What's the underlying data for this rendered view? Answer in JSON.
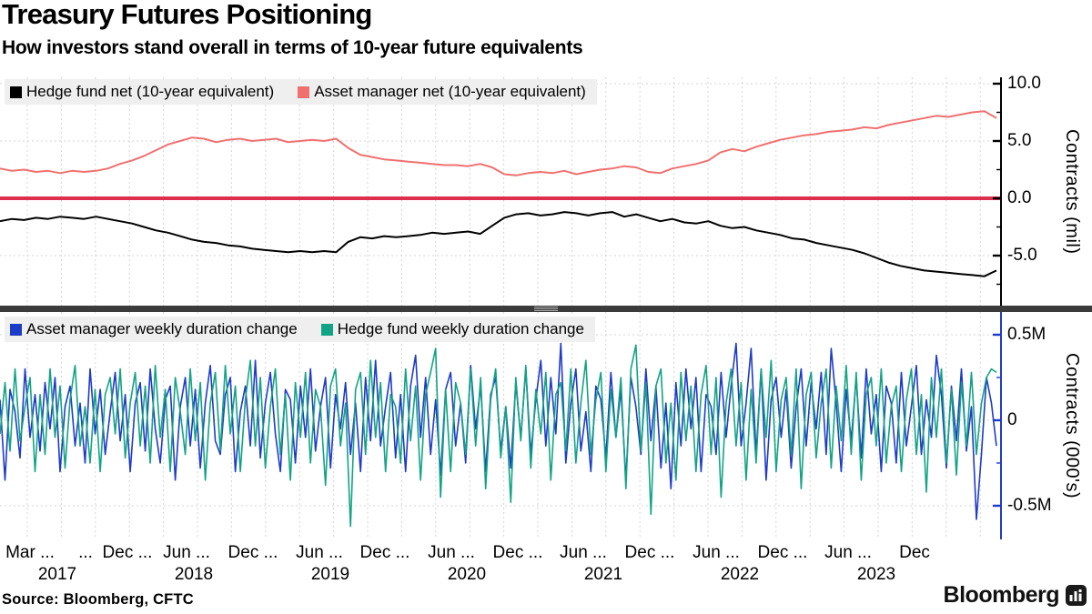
{
  "header": {
    "title": "Treasury Futures Positioning",
    "subtitle": "How investors stand overall in terms of 10-year future equivalents"
  },
  "source": "Source: Bloomberg, CFTC",
  "brand": {
    "wordmark": "Bloomberg",
    "icon": "bloomberg-terminal-icon"
  },
  "colors": {
    "hedge_fund_net": "#000000",
    "asset_manager_net": "#f07070",
    "zero_line_red": "#dd2e4d",
    "asset_manager_duration": "#1e3bc8",
    "hedge_fund_duration": "#12a384",
    "grid": "#d4d4d4",
    "legend_bg": "#efefef",
    "divider": "#3b3b3b"
  },
  "x_axis": {
    "tick_labels": [
      "Mar ...",
      "...",
      "Dec ...",
      "Jun ...",
      "Dec ...",
      "Jun ...",
      "Dec ...",
      "Jun ...",
      "Dec ...",
      "Jun ...",
      "Dec ...",
      "Jun ...",
      "Dec ...",
      "Jun ...",
      "Dec"
    ],
    "year_labels": [
      "2017",
      "2018",
      "2019",
      "2020",
      "2021",
      "2022",
      "2023"
    ]
  },
  "chart_data": [
    {
      "type": "line",
      "panel": "top",
      "ylabel": "Contracts  (mil)",
      "x_range": [
        "Mar 2017",
        "Feb 2024"
      ],
      "ylim": [
        -9.4,
        10.6
      ],
      "grid": "dashed",
      "legend_position": "top-left",
      "y_ticks": [
        {
          "v": 10,
          "label": "10.0"
        },
        {
          "v": 5,
          "label": "5.0"
        },
        {
          "v": 0,
          "label": "0.0"
        },
        {
          "v": -5,
          "label": "-5.0"
        }
      ],
      "y_minor": [
        7.5,
        2.5,
        -2.5,
        -7.5
      ],
      "grid_values": [
        10,
        5,
        -5
      ],
      "zero_line": {
        "value": 0,
        "color": "#dd2e4d",
        "width": 4
      },
      "axis_color": "#000000",
      "series": [
        {
          "name": "Hedge fund net (10-year equivalent)",
          "color": "#000000",
          "values": [
            -2.0,
            -1.8,
            -1.9,
            -1.7,
            -1.8,
            -1.6,
            -1.7,
            -1.8,
            -1.6,
            -1.8,
            -2.0,
            -2.2,
            -2.5,
            -2.8,
            -3.0,
            -3.3,
            -3.6,
            -3.8,
            -3.9,
            -4.1,
            -4.2,
            -4.4,
            -4.5,
            -4.6,
            -4.7,
            -4.6,
            -4.7,
            -4.6,
            -4.7,
            -3.8,
            -3.4,
            -3.5,
            -3.3,
            -3.4,
            -3.3,
            -3.2,
            -3.0,
            -3.1,
            -3.0,
            -2.9,
            -3.1,
            -2.4,
            -1.7,
            -1.4,
            -1.3,
            -1.5,
            -1.4,
            -1.2,
            -1.3,
            -1.5,
            -1.3,
            -1.2,
            -1.6,
            -1.4,
            -1.7,
            -2.0,
            -1.8,
            -2.1,
            -2.2,
            -2.0,
            -2.4,
            -2.6,
            -2.5,
            -2.8,
            -3.0,
            -3.2,
            -3.5,
            -3.6,
            -3.9,
            -4.1,
            -4.3,
            -4.5,
            -4.8,
            -5.2,
            -5.6,
            -5.9,
            -6.1,
            -6.3,
            -6.4,
            -6.5,
            -6.6,
            -6.7,
            -6.8,
            -6.3
          ]
        },
        {
          "name": "Asset manager net (10-year equivalent)",
          "color": "#f07070",
          "values": [
            2.6,
            2.4,
            2.5,
            2.3,
            2.4,
            2.2,
            2.4,
            2.3,
            2.4,
            2.6,
            3.0,
            3.3,
            3.7,
            4.2,
            4.7,
            5.0,
            5.3,
            5.2,
            4.9,
            5.1,
            5.2,
            5.0,
            5.1,
            5.2,
            4.9,
            5.0,
            5.1,
            5.0,
            5.2,
            4.4,
            3.8,
            3.6,
            3.4,
            3.3,
            3.2,
            3.1,
            3.0,
            2.9,
            2.9,
            2.8,
            3.0,
            2.7,
            2.1,
            2.0,
            2.2,
            2.3,
            2.2,
            2.4,
            2.1,
            2.3,
            2.5,
            2.6,
            2.8,
            2.7,
            2.3,
            2.2,
            2.6,
            2.8,
            3.0,
            3.3,
            4.0,
            4.3,
            4.1,
            4.5,
            4.8,
            5.1,
            5.3,
            5.5,
            5.6,
            5.8,
            5.9,
            6.0,
            6.2,
            6.1,
            6.4,
            6.6,
            6.8,
            7.0,
            7.2,
            7.1,
            7.3,
            7.5,
            7.6,
            7.0
          ]
        }
      ]
    },
    {
      "type": "line",
      "panel": "bottom",
      "ylabel": "Contracts  (000's)",
      "x_range": [
        "Mar 2017",
        "Feb 2024"
      ],
      "ylim": [
        -0.66,
        0.63
      ],
      "grid": "dashed",
      "legend_position": "top-left",
      "y_ticks": [
        {
          "v": 0.5,
          "label": "0.5M"
        },
        {
          "v": 0,
          "label": "0"
        },
        {
          "v": -0.5,
          "label": "-0.5M"
        }
      ],
      "y_minor": [
        0.25,
        -0.25
      ],
      "grid_values": [
        0.5,
        0,
        -0.5
      ],
      "zero_line": null,
      "axis_color": "#1e3bc8",
      "series": [
        {
          "name": "Asset manager weekly duration change",
          "color": "#1e3bc8",
          "values": [
            0.12,
            -0.35,
            0.18,
            0.05,
            -0.22,
            0.3,
            -0.1,
            0.15,
            -0.18,
            0.22,
            -0.05,
            0.25,
            -0.3,
            0.08,
            0.2,
            -0.15,
            0.1,
            -0.25,
            0.3,
            -0.08,
            0.18,
            -0.2,
            0.05,
            0.28,
            -0.12,
            0.15,
            -0.3,
            0.1,
            0.22,
            -0.18,
            0.3,
            -0.05,
            -0.25,
            0.12,
            0.2,
            -0.35,
            0.08,
            0.25,
            -0.15,
            0.18,
            -0.28,
            0.1,
            0.32,
            -0.12,
            -0.2,
            0.15,
            0.25,
            -0.3,
            0.05,
            0.2,
            -0.15,
            0.35,
            -0.22,
            0.1,
            0.28,
            -0.08,
            -0.3,
            0.18,
            0.12,
            -0.25,
            0.2,
            -0.1,
            0.3,
            -0.18,
            0.08,
            0.25,
            -0.28,
            0.15,
            -0.05,
            0.22,
            -0.2,
            0.1,
            -0.3,
            0.25,
            -0.12,
            0.35,
            -0.15,
            0.08,
            0.28,
            -0.22,
            0.15,
            -0.3,
            0.2,
            0.38,
            -0.1,
            0.25,
            -0.2,
            0.12,
            -0.32,
            0.18,
            0.28,
            -0.15,
            0.1,
            -0.25,
            0.32,
            -0.05,
            0.2,
            -0.3,
            0.15,
            0.25,
            -0.18,
            0.08,
            -0.28,
            0.22,
            -0.1,
            0.3,
            -0.2,
            0.12,
            0.35,
            -0.15,
            0.25,
            -0.08,
            0.45,
            -0.25,
            0.1,
            0.3,
            -0.18,
            0.05,
            -0.3,
            0.2,
            0.12,
            -0.22,
            0.28,
            -0.1,
            0.18,
            -0.35,
            0.25,
            0.08,
            -0.2,
            0.3,
            -0.12,
            0.2,
            -0.28,
            0.1,
            -0.4,
            0.22,
            -0.15,
            0.3,
            -0.05,
            0.25,
            -0.3,
            0.15,
            0.08,
            -0.2,
            0.28,
            -0.1,
            0.2,
            0.45,
            -0.15,
            0.1,
            0.42,
            -0.2,
            0.3,
            -0.35,
            0.12,
            0.25,
            -0.1,
            0.18,
            -0.28,
            0.08,
            0.3,
            -0.15,
            0.22,
            -0.05,
            0.28,
            -0.2,
            0.42,
            0.1,
            -0.3,
            0.18,
            -0.12,
            0.25,
            -0.22,
            0.3,
            -0.08,
            0.15,
            -0.3,
            0.2,
            0.1,
            -0.25,
            0.28,
            -0.15,
            0.08,
            0.32,
            -0.2,
            0.12,
            -0.1,
            0.38,
            0.15,
            -0.28,
            0.2,
            -0.12,
            0.3,
            -0.18,
            0.08,
            -0.58,
            -0.2,
            0.25,
            0.1,
            -0.15
          ]
        },
        {
          "name": "Hedge fund weekly duration change",
          "color": "#12a384",
          "values": [
            -0.08,
            0.22,
            -0.18,
            0.3,
            -0.12,
            0.08,
            0.25,
            -0.3,
            0.15,
            -0.2,
            0.3,
            -0.1,
            0.2,
            -0.28,
            0.12,
            0.32,
            -0.15,
            0.08,
            -0.25,
            0.18,
            -0.3,
            0.15,
            0.25,
            -0.08,
            0.3,
            -0.22,
            0.1,
            0.28,
            -0.15,
            0.2,
            -0.25,
            0.32,
            -0.1,
            0.18,
            -0.3,
            0.25,
            0.05,
            -0.2,
            0.3,
            -0.12,
            0.22,
            -0.35,
            0.1,
            0.28,
            -0.18,
            0.32,
            -0.08,
            0.2,
            -0.3,
            0.12,
            0.35,
            -0.15,
            0.25,
            -0.28,
            0.08,
            0.3,
            -0.2,
            0.15,
            -0.35,
            0.22,
            -0.1,
            0.28,
            -0.25,
            0.18,
            0.08,
            -0.38,
            0.2,
            0.3,
            -0.15,
            0.1,
            -0.62,
            0.18,
            0.28,
            -0.2,
            0.35,
            -0.1,
            0.22,
            -0.3,
            0.15,
            0.08,
            -0.25,
            0.3,
            -0.12,
            0.2,
            -0.35,
            0.15,
            0.28,
            0.42,
            -0.45,
            0.18,
            -0.3,
            0.22,
            0.1,
            -0.2,
            0.3,
            -0.15,
            0.25,
            -0.4,
            0.12,
            0.3,
            -0.22,
            0.08,
            -0.48,
            0.25,
            -0.12,
            0.32,
            -0.28,
            0.18,
            -0.08,
            0.28,
            -0.35,
            0.15,
            0.22,
            -0.18,
            0.3,
            -0.25,
            0.1,
            0.35,
            -0.2,
            0.12,
            0.28,
            -0.3,
            0.18,
            -0.1,
            0.25,
            -0.4,
            0.3,
            0.44,
            -0.18,
            0.22,
            -0.55,
            0.2,
            0.3,
            -0.25,
            0.1,
            -0.35,
            0.28,
            -0.12,
            0.2,
            -0.3,
            0.15,
            0.32,
            -0.2,
            0.25,
            -0.45,
            0.1,
            0.3,
            -0.15,
            0.22,
            -0.35,
            0.18,
            -0.25,
            0.3,
            -0.1,
            0.35,
            -0.3,
            0.12,
            0.25,
            -0.2,
            0.3,
            -0.4,
            0.15,
            0.28,
            -0.22,
            0.1,
            0.3,
            -0.28,
            0.2,
            -0.12,
            0.32,
            -0.2,
            0.28,
            -0.35,
            0.15,
            0.25,
            -0.15,
            0.3,
            -0.25,
            0.08,
            0.2,
            -0.3,
            0.12,
            0.3,
            -0.2,
            0.15,
            -0.42,
            0.25,
            -0.1,
            0.3,
            -0.25,
            0.18,
            -0.32,
            0.22,
            -0.15,
            0.28,
            -0.2,
            0.1,
            0.25,
            0.3,
            0.28
          ]
        }
      ]
    }
  ]
}
